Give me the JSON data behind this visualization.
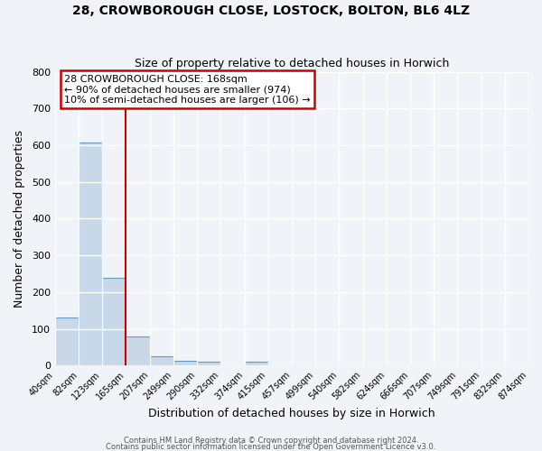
{
  "title": "28, CROWBOROUGH CLOSE, LOSTOCK, BOLTON, BL6 4LZ",
  "subtitle": "Size of property relative to detached houses in Horwich",
  "xlabel": "Distribution of detached houses by size in Horwich",
  "ylabel": "Number of detached properties",
  "bar_edges": [
    40,
    82,
    123,
    165,
    207,
    249,
    290,
    332,
    374,
    415,
    457,
    499,
    540,
    582,
    624,
    666,
    707,
    749,
    791,
    832,
    874
  ],
  "bar_heights": [
    130,
    608,
    240,
    80,
    25,
    12,
    10,
    0,
    10,
    0,
    0,
    0,
    0,
    0,
    0,
    0,
    0,
    0,
    0,
    0
  ],
  "tick_labels": [
    "40sqm",
    "82sqm",
    "123sqm",
    "165sqm",
    "207sqm",
    "249sqm",
    "290sqm",
    "332sqm",
    "374sqm",
    "415sqm",
    "457sqm",
    "499sqm",
    "540sqm",
    "582sqm",
    "624sqm",
    "666sqm",
    "707sqm",
    "749sqm",
    "791sqm",
    "832sqm",
    "874sqm"
  ],
  "bar_color": "#c8d8e8",
  "bar_edge_color": "#6699bb",
  "vline_x": 165,
  "vline_color": "#cc0000",
  "ylim": [
    0,
    800
  ],
  "yticks": [
    0,
    100,
    200,
    300,
    400,
    500,
    600,
    700,
    800
  ],
  "annotation_text": "28 CROWBOROUGH CLOSE: 168sqm\n← 90% of detached houses are smaller (974)\n10% of semi-detached houses are larger (106) →",
  "annotation_box_color": "#ffffff",
  "annotation_box_edge": "#cc0000",
  "footer1": "Contains HM Land Registry data © Crown copyright and database right 2024.",
  "footer2": "Contains public sector information licensed under the Open Government Licence v3.0.",
  "bg_color": "#f0f4f8",
  "grid_color": "#ffffff",
  "title_fontsize": 10,
  "subtitle_fontsize": 9
}
